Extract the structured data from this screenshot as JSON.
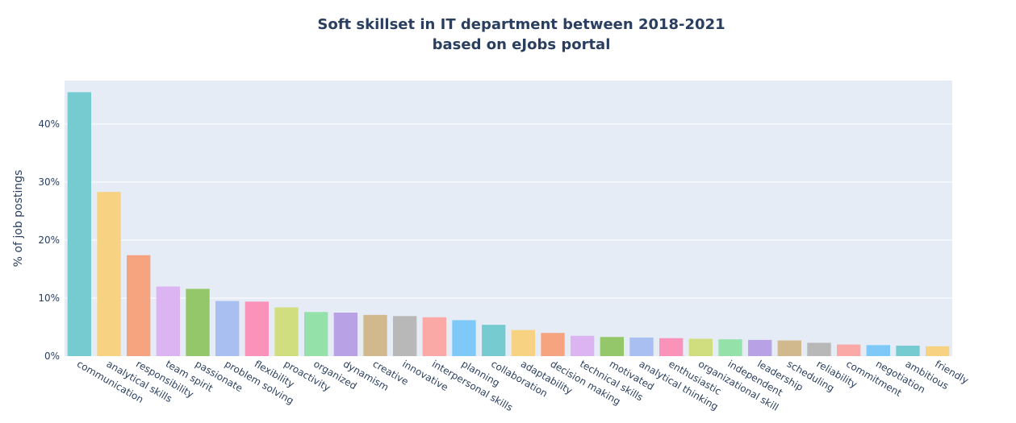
{
  "chart_data": {
    "type": "bar",
    "title_line1": "Soft skillset in IT department between 2018-2021",
    "title_line2": "based on eJobs portal",
    "xlabel": "",
    "ylabel": "% of job postings",
    "ylim": [
      0,
      47.5
    ],
    "yticks": [
      0,
      10,
      20,
      30,
      40
    ],
    "ytick_suffix": "%",
    "grid": true,
    "categories": [
      "communication",
      "analytical skills",
      "responsibility",
      "team spirit",
      "passionate",
      "problem solving",
      "flexibility",
      "proactivity",
      "organized",
      "dynamism",
      "creative",
      "innovative",
      "interpersonal skills",
      "planning",
      "collaboration",
      "adaptability",
      "decision making",
      "technical skills",
      "motivated",
      "analytical thinking",
      "enthusiastic",
      "organizational skill",
      "independent",
      "leadership",
      "scheduling",
      "reliability",
      "commitment",
      "negotiation",
      "ambitious",
      "friendly"
    ],
    "values": [
      45.5,
      28.3,
      17.4,
      12.0,
      11.6,
      9.5,
      9.4,
      8.4,
      7.6,
      7.5,
      7.1,
      6.9,
      6.7,
      6.2,
      5.4,
      4.5,
      4.0,
      3.5,
      3.3,
      3.2,
      3.1,
      3.0,
      2.9,
      2.8,
      2.7,
      2.3,
      2.0,
      1.9,
      1.8,
      1.7
    ],
    "colors": [
      "#76CBD0",
      "#F6D282",
      "#F6A37F",
      "#DDB4F2",
      "#94C769",
      "#A9BEF1",
      "#FA92B9",
      "#D1DE7F",
      "#94E2A9",
      "#B8A2E5",
      "#D2B98D",
      "#B8B8B8",
      "#FAA9A6",
      "#7FC9F9"
    ]
  }
}
